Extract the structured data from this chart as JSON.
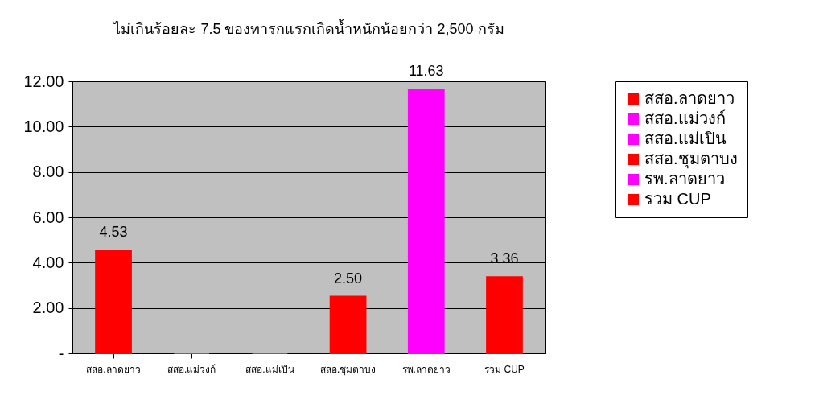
{
  "chart_data": {
    "type": "bar",
    "title": "ไม่เกินร้อยละ 7.5 ของทารกแรกเกิดน้ำหนักน้อยกว่า 2,500 กรัม",
    "categories": [
      "สสอ.ลาดยาว",
      "สสอ.แม่วงก์",
      "สสอ.แม่เปิน",
      "สสอ.ชุมตาบง",
      "รพ.ลาดยาว",
      "รวม CUP"
    ],
    "series": [
      {
        "name": "สสอ.ลาดยาว",
        "color": "#ff0000",
        "values": [
          4.53,
          null,
          null,
          null,
          null,
          null
        ],
        "value_labels": [
          "4.53",
          null,
          null,
          null,
          null,
          null
        ]
      },
      {
        "name": "สสอ.แม่วงก์",
        "color": "#ff00ff",
        "values": [
          null,
          0,
          null,
          null,
          null,
          null
        ]
      },
      {
        "name": "สสอ.แม่เปิน",
        "color": "#ff00ff",
        "values": [
          null,
          null,
          0,
          null,
          null,
          null
        ]
      },
      {
        "name": "สสอ.ชุมตาบง",
        "color": "#ff0000",
        "values": [
          null,
          null,
          null,
          2.5,
          null,
          null
        ],
        "value_labels": [
          null,
          null,
          null,
          "2.50",
          null,
          null
        ]
      },
      {
        "name": "รพ.ลาดยาว",
        "color": "#ff00ff",
        "values": [
          null,
          null,
          null,
          null,
          11.63,
          null
        ],
        "value_labels": [
          null,
          null,
          null,
          null,
          "11.63",
          null
        ]
      },
      {
        "name": "รวม CUP",
        "color": "#ff0000",
        "values": [
          null,
          null,
          null,
          null,
          null,
          3.36
        ],
        "value_labels": [
          null,
          null,
          null,
          null,
          null,
          "3.36"
        ]
      }
    ],
    "ylim": [
      0,
      12
    ],
    "yticks": [
      {
        "value": 0,
        "label": "-"
      },
      {
        "value": 2,
        "label": "2.00"
      },
      {
        "value": 4,
        "label": "4.00"
      },
      {
        "value": 6,
        "label": "6.00"
      },
      {
        "value": 8,
        "label": "8.00"
      },
      {
        "value": 10,
        "label": "10.00"
      },
      {
        "value": 12,
        "label": "12.00"
      }
    ],
    "grid": "y",
    "legend": "right"
  }
}
